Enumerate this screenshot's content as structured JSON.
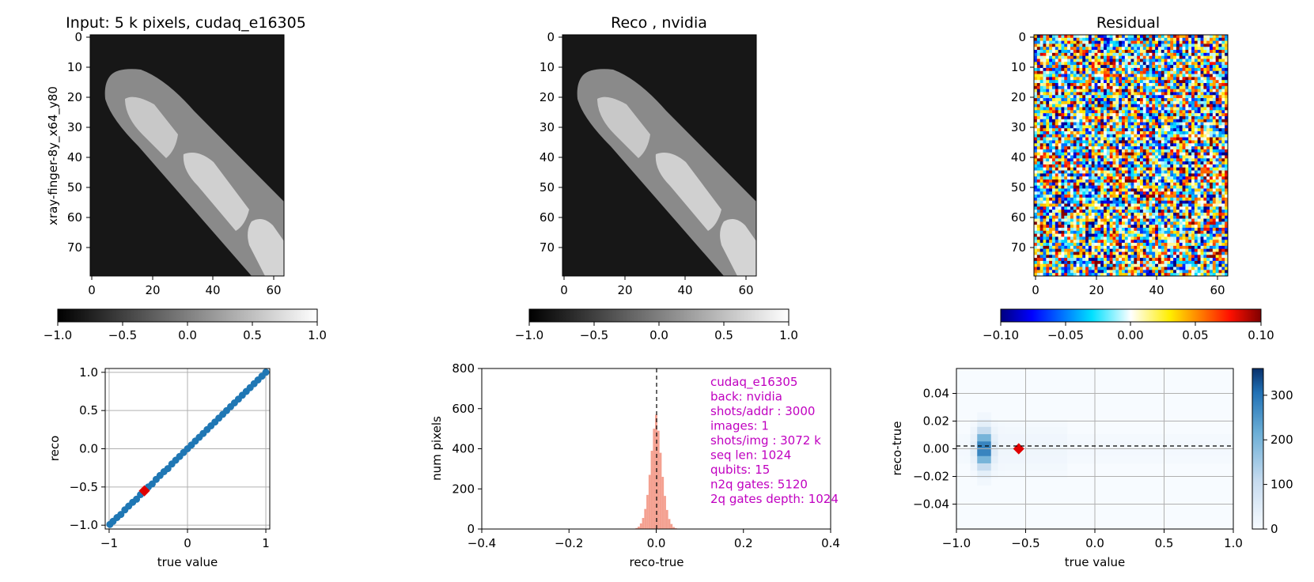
{
  "figure": {
    "panels": {
      "input": {
        "title": "Input: 5 k pixels, cudaq_e16305",
        "ylabel": "xray-finger-8y_x64_y80",
        "xticks": [
          "0",
          "20",
          "40",
          "60"
        ],
        "yticks": [
          "0",
          "10",
          "20",
          "30",
          "40",
          "50",
          "60",
          "70"
        ],
        "colorbar": {
          "ticks": [
            "−1.0",
            "−0.5",
            "0.0",
            "0.5",
            "1.0"
          ],
          "range": [
            -1.0,
            1.0
          ],
          "colormap": "gray"
        }
      },
      "reco": {
        "title": "Reco , nvidia",
        "xticks": [
          "0",
          "20",
          "40",
          "60"
        ],
        "yticks": [
          "0",
          "10",
          "20",
          "30",
          "40",
          "50",
          "60",
          "70"
        ],
        "colorbar": {
          "ticks": [
            "−1.0",
            "−0.5",
            "0.0",
            "0.5",
            "1.0"
          ],
          "range": [
            -1.0,
            1.0
          ],
          "colormap": "gray"
        }
      },
      "residual": {
        "title": "Residual",
        "xticks": [
          "0",
          "20",
          "40",
          "60"
        ],
        "yticks": [
          "0",
          "10",
          "20",
          "30",
          "40",
          "50",
          "60",
          "70"
        ],
        "colorbar": {
          "ticks": [
            "−0.10",
            "−0.05",
            "0.00",
            "0.05",
            "0.10"
          ],
          "range": [
            -0.1,
            0.1
          ],
          "colormap": "jet"
        }
      }
    },
    "info_box": {
      "color": "#c000c0",
      "lines": [
        "cudaq_e16305",
        "back: nvidia",
        "shots/addr : 3000",
        "images: 1",
        "shots/img : 3072 k",
        "seq len: 1024",
        "qubits: 15",
        "n2q gates: 5120",
        "2q gates depth: 1024"
      ]
    }
  },
  "chart_data": [
    {
      "type": "heatmap",
      "title": "Input: 5 k pixels, cudaq_e16305",
      "ylabel": "xray-finger-8y_x64_y80",
      "xlim": [
        0,
        64
      ],
      "ylim": [
        80,
        0
      ],
      "colormap": "gray",
      "colorbar_range": [
        -1.0,
        1.0
      ]
    },
    {
      "type": "heatmap",
      "title": "Reco , nvidia",
      "xlim": [
        0,
        64
      ],
      "ylim": [
        80,
        0
      ],
      "colormap": "gray",
      "colorbar_range": [
        -1.0,
        1.0
      ]
    },
    {
      "type": "heatmap",
      "title": "Residual",
      "xlim": [
        0,
        64
      ],
      "ylim": [
        80,
        0
      ],
      "colormap": "jet",
      "colorbar_range": [
        -0.1,
        0.1
      ]
    },
    {
      "type": "scatter",
      "xlabel": "true value",
      "ylabel": "reco",
      "xlim": [
        -1.05,
        1.05
      ],
      "ylim": [
        -1.05,
        1.05
      ],
      "xticks": [
        "−1",
        "0",
        "1"
      ],
      "yticks": [
        "−1.0",
        "−0.5",
        "0.0",
        "0.5",
        "1.0"
      ],
      "grid": true,
      "points": [
        [
          -0.99,
          -0.99
        ],
        [
          -0.95,
          -0.95
        ],
        [
          -0.9,
          -0.9
        ],
        [
          -0.85,
          -0.86
        ],
        [
          -0.8,
          -0.8
        ],
        [
          -0.75,
          -0.75
        ],
        [
          -0.7,
          -0.7
        ],
        [
          -0.65,
          -0.66
        ],
        [
          -0.6,
          -0.6
        ],
        [
          -0.55,
          -0.55
        ],
        [
          -0.5,
          -0.5
        ],
        [
          -0.45,
          -0.46
        ],
        [
          -0.4,
          -0.4
        ],
        [
          -0.35,
          -0.35
        ],
        [
          -0.3,
          -0.3
        ],
        [
          -0.25,
          -0.26
        ],
        [
          -0.2,
          -0.2
        ],
        [
          -0.15,
          -0.15
        ],
        [
          -0.1,
          -0.1
        ],
        [
          -0.05,
          -0.05
        ],
        [
          0.0,
          0.0
        ],
        [
          0.05,
          0.05
        ],
        [
          0.1,
          0.1
        ],
        [
          0.15,
          0.15
        ],
        [
          0.2,
          0.2
        ],
        [
          0.25,
          0.25
        ],
        [
          0.3,
          0.3
        ],
        [
          0.35,
          0.35
        ],
        [
          0.4,
          0.4
        ],
        [
          0.45,
          0.45
        ],
        [
          0.5,
          0.5
        ],
        [
          0.55,
          0.55
        ],
        [
          0.6,
          0.6
        ],
        [
          0.65,
          0.65
        ],
        [
          0.7,
          0.7
        ],
        [
          0.75,
          0.75
        ],
        [
          0.8,
          0.8
        ],
        [
          0.85,
          0.85
        ],
        [
          0.9,
          0.9
        ],
        [
          0.95,
          0.95
        ],
        [
          1.0,
          1.0
        ]
      ],
      "marker": {
        "x": -0.55,
        "y": -0.55,
        "color": "#e00000"
      },
      "reference_line": "y = x",
      "point_color": "#1f77b4"
    },
    {
      "type": "bar",
      "xlabel": "reco-true",
      "ylabel": "num pixels",
      "xlim": [
        -0.4,
        0.4
      ],
      "ylim": [
        0,
        800
      ],
      "xticks": [
        "−0.4",
        "−0.2",
        "0.0",
        "0.2",
        "0.4"
      ],
      "yticks": [
        "0",
        "200",
        "400",
        "600",
        "800"
      ],
      "bin_width": 0.005,
      "bins": [
        [
          -0.05,
          2
        ],
        [
          -0.045,
          5
        ],
        [
          -0.04,
          12
        ],
        [
          -0.035,
          28
        ],
        [
          -0.03,
          55
        ],
        [
          -0.025,
          100
        ],
        [
          -0.02,
          170
        ],
        [
          -0.015,
          270
        ],
        [
          -0.01,
          390
        ],
        [
          -0.005,
          500
        ],
        [
          0.0,
          570
        ],
        [
          0.005,
          490
        ],
        [
          0.01,
          380
        ],
        [
          0.015,
          260
        ],
        [
          0.02,
          165
        ],
        [
          0.025,
          95
        ],
        [
          0.03,
          50
        ],
        [
          0.035,
          25
        ],
        [
          0.04,
          10
        ],
        [
          0.045,
          4
        ],
        [
          0.05,
          2
        ]
      ],
      "bar_color": "#f4a090",
      "reference_line_x": 0.0
    },
    {
      "type": "heatmap",
      "xlabel": "true value",
      "ylabel": "reco-true",
      "xlim": [
        -1.0,
        1.0
      ],
      "ylim": [
        -0.058,
        0.058
      ],
      "xticks": [
        "−1.0",
        "−0.5",
        "0.0",
        "0.5",
        "1.0"
      ],
      "yticks": [
        "−0.04",
        "−0.02",
        "0.00",
        "0.02",
        "0.04"
      ],
      "grid": true,
      "colormap": "Blues",
      "colorbar_range": [
        0,
        360
      ],
      "colorbar_ticks": [
        "0",
        "100",
        "200",
        "300"
      ],
      "x_bins": 40,
      "y_bins": 22,
      "marker": {
        "x": -0.55,
        "y": 0.0,
        "color": "#e00000"
      },
      "reference_line_y": 0.0
    }
  ]
}
